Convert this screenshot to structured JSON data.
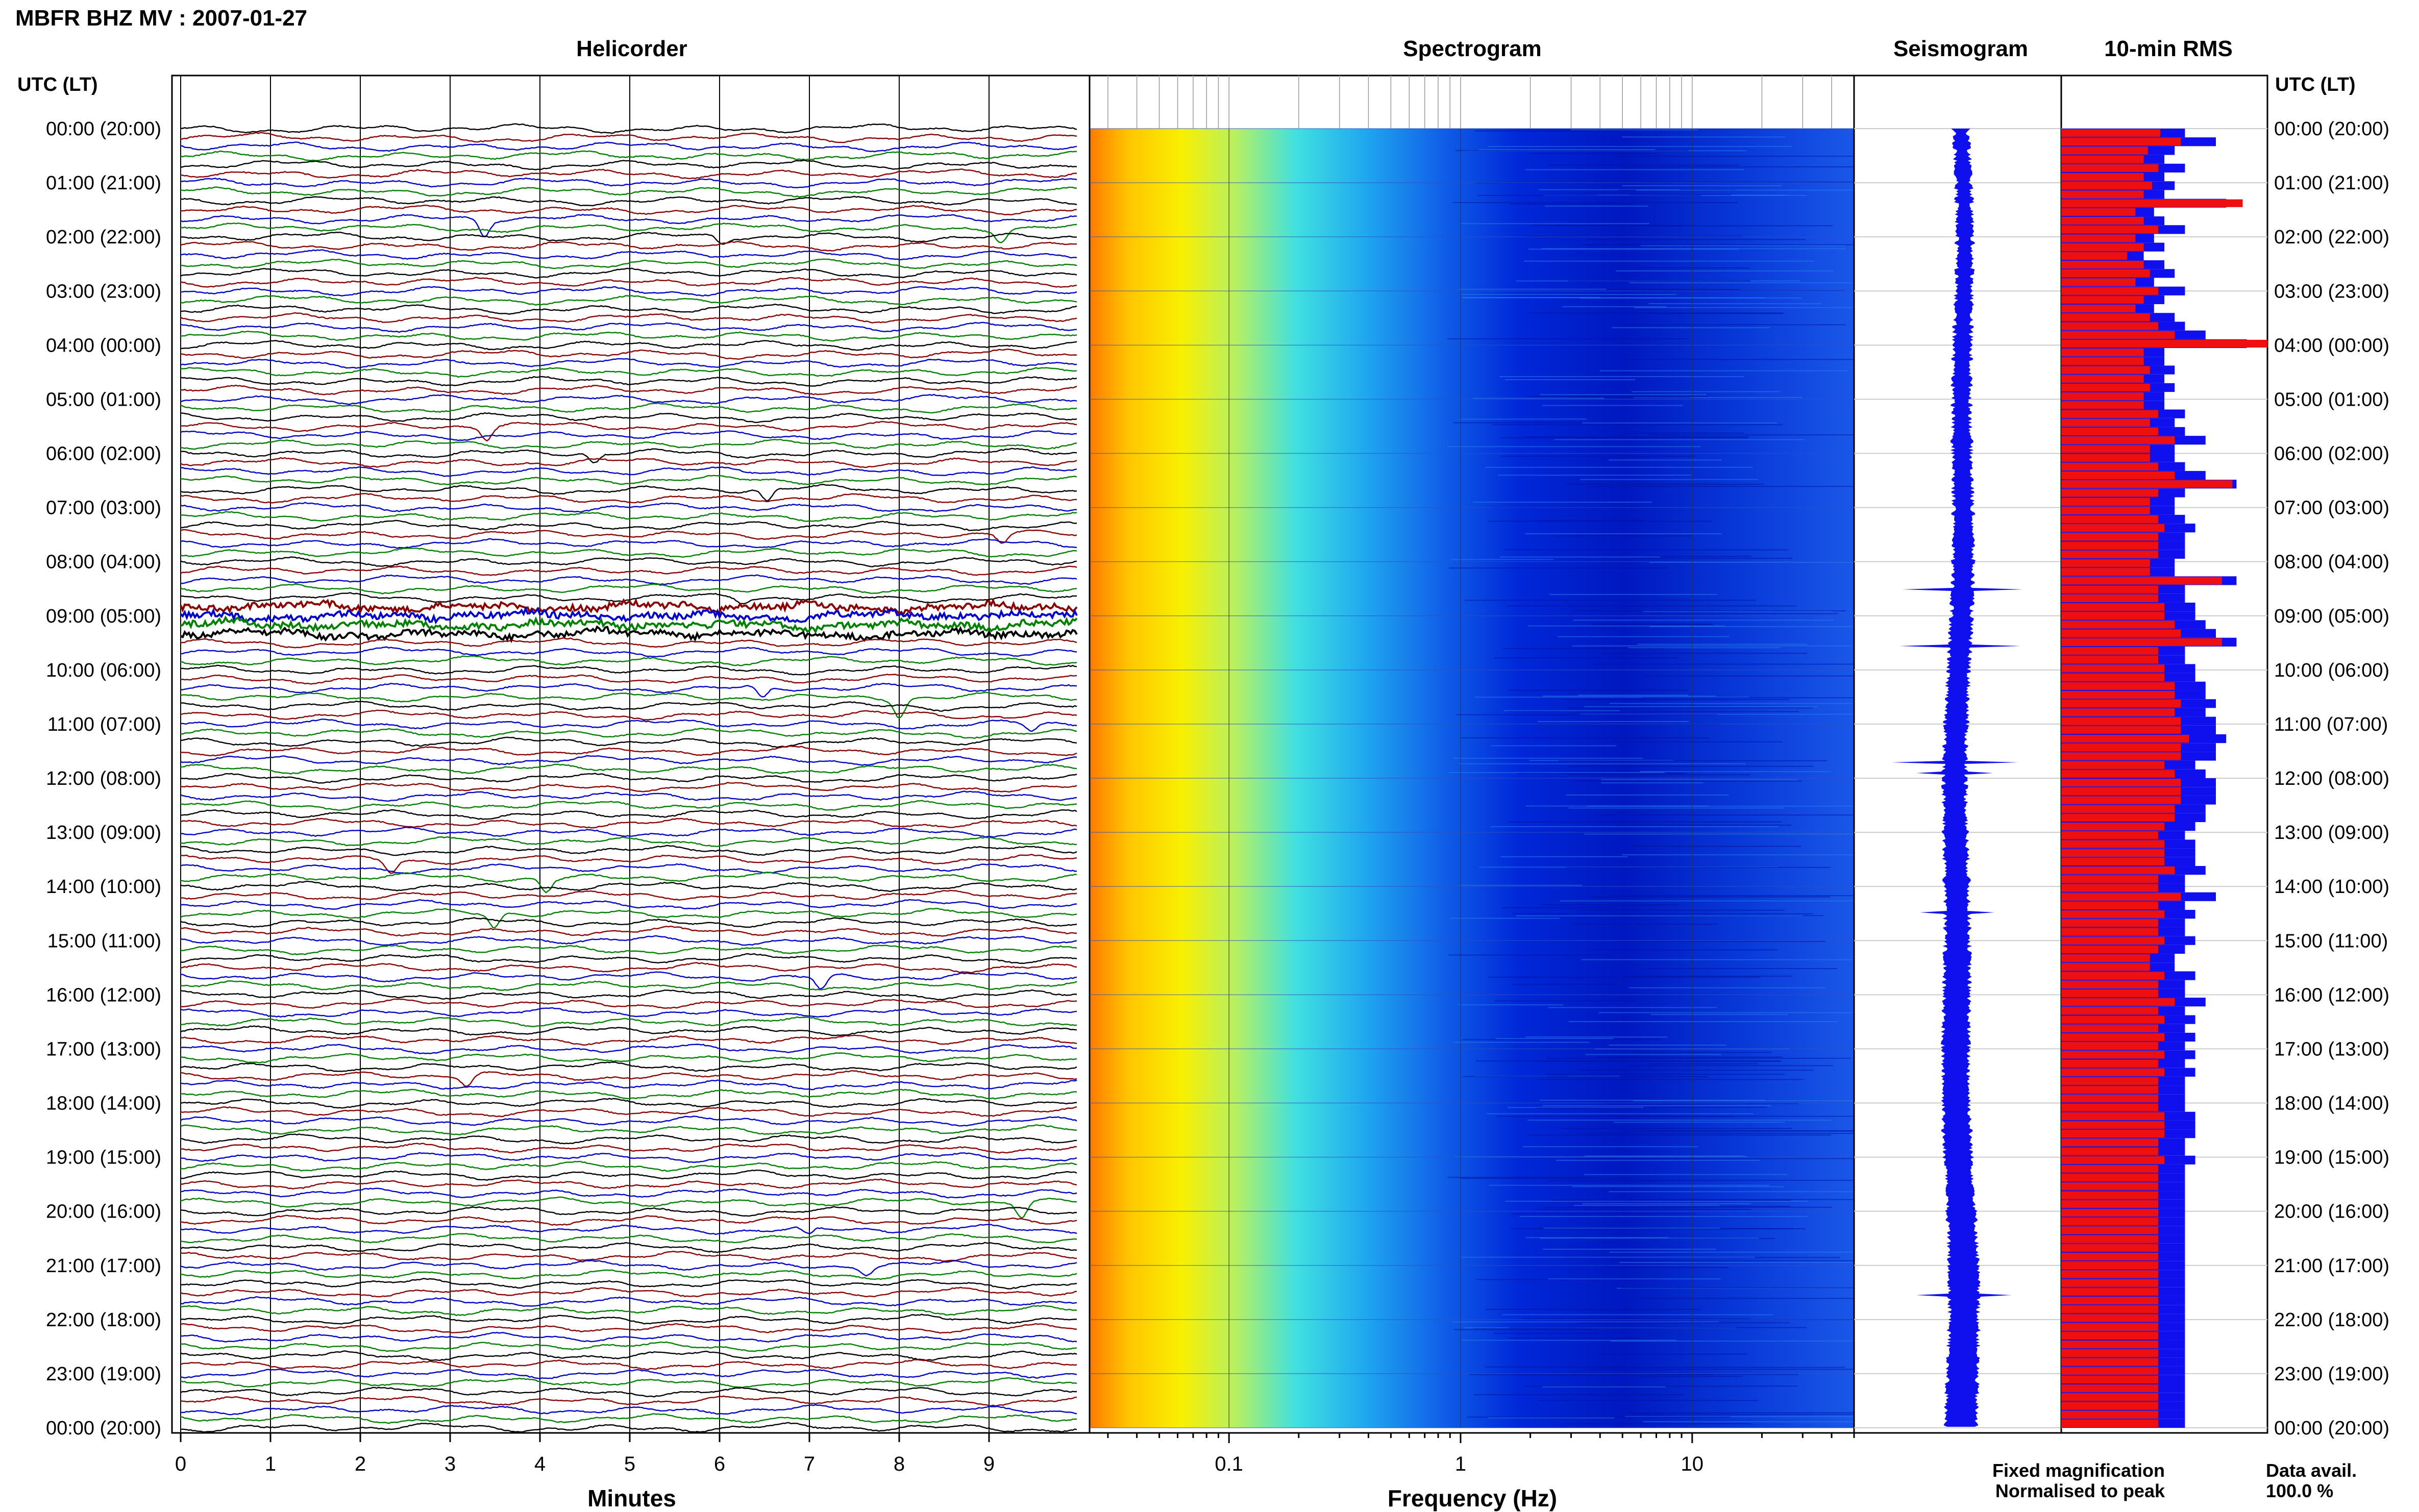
{
  "title": "MBFR BHZ MV : 2007-01-27",
  "panels": {
    "helicorder": "Helicorder",
    "spectrogram": "Spectrogram",
    "seismogram": "Seismogram",
    "rms": "10-min RMS"
  },
  "time_axis_label": "UTC (LT)",
  "time_labels": [
    "00:00 (20:00)",
    "01:00 (21:00)",
    "02:00 (22:00)",
    "03:00 (23:00)",
    "04:00 (00:00)",
    "05:00 (01:00)",
    "06:00 (02:00)",
    "07:00 (03:00)",
    "08:00 (04:00)",
    "09:00 (05:00)",
    "10:00 (06:00)",
    "11:00 (07:00)",
    "12:00 (08:00)",
    "13:00 (09:00)",
    "14:00 (10:00)",
    "15:00 (11:00)",
    "16:00 (12:00)",
    "17:00 (13:00)",
    "18:00 (14:00)",
    "19:00 (15:00)",
    "20:00 (16:00)",
    "21:00 (17:00)",
    "22:00 (18:00)",
    "23:00 (19:00)",
    "00:00 (20:00)"
  ],
  "helicorder_axis": {
    "label": "Minutes",
    "ticks": [
      "0",
      "1",
      "2",
      "3",
      "4",
      "5",
      "6",
      "7",
      "8",
      "9"
    ],
    "trace_colors": [
      "#000000",
      "#8b0000",
      "#0000cc",
      "#008000"
    ]
  },
  "spectrogram_axis": {
    "label": "Frequency (Hz)",
    "ticks": [
      "0.1",
      "1",
      "10"
    ],
    "scale": "log",
    "range": [
      0.025,
      50
    ]
  },
  "legend": {
    "fixed": "Fixed magnification",
    "fixed_color": "#1010ee",
    "normalised": "Normalised to peak",
    "normalised_color": "#ee1010"
  },
  "data_availability": {
    "label": "Data avail.",
    "value": "100.0 %"
  },
  "chart_data": {
    "type": "bar",
    "title": "MBFR BHZ MV : 2007-01-27",
    "subtitle": "10-min RMS",
    "x_unit": "UTC hour",
    "series": [
      {
        "name": "Fixed magnification",
        "color": "#1010ee",
        "values": [
          0.6,
          0.75,
          0.55,
          0.5,
          0.6,
          0.5,
          0.55,
          0.5,
          0.8,
          0.45,
          0.5,
          0.6,
          0.45,
          0.5,
          0.4,
          0.5,
          0.55,
          0.45,
          0.6,
          0.5,
          0.45,
          0.55,
          0.6,
          0.7,
          0.9,
          0.5,
          0.5,
          0.55,
          0.5,
          0.55,
          0.5,
          0.5,
          0.6,
          0.55,
          0.6,
          0.7,
          0.55,
          0.55,
          0.6,
          0.7,
          0.85,
          0.6,
          0.55,
          0.55,
          0.6,
          0.65,
          0.6,
          0.6,
          0.6,
          0.55,
          0.55,
          0.85,
          0.6,
          0.6,
          0.65,
          0.65,
          0.7,
          0.75,
          0.85,
          0.6,
          0.6,
          0.65,
          0.65,
          0.7,
          0.7,
          0.75,
          0.7,
          0.75,
          0.75,
          0.8,
          0.75,
          0.75,
          0.65,
          0.7,
          0.75,
          0.75,
          0.75,
          0.7,
          0.7,
          0.65,
          0.6,
          0.65,
          0.65,
          0.65,
          0.7,
          0.6,
          0.6,
          0.75,
          0.6,
          0.65,
          0.6,
          0.6,
          0.65,
          0.6,
          0.55,
          0.55,
          0.65,
          0.6,
          0.6,
          0.7,
          0.6,
          0.65,
          0.6,
          0.65,
          0.6,
          0.65,
          0.6,
          0.65,
          0.6,
          0.6,
          0.6,
          0.6,
          0.65,
          0.65,
          0.65,
          0.6,
          0.6,
          0.65,
          0.6,
          0.6,
          0.6,
          0.6,
          0.6,
          0.6,
          0.6,
          0.6,
          0.6,
          0.6,
          0.6,
          0.6,
          0.6,
          0.6,
          0.6,
          0.6,
          0.6,
          0.6,
          0.6,
          0.6,
          0.6,
          0.6,
          0.6,
          0.6,
          0.6,
          0.6,
          0.6,
          0.6,
          0.6,
          0.6
        ]
      },
      {
        "name": "Normalised to peak",
        "color": "#ee1010",
        "values": [
          0.48,
          0.58,
          0.42,
          0.4,
          0.47,
          0.4,
          0.44,
          0.4,
          0.88,
          0.36,
          0.4,
          0.47,
          0.36,
          0.4,
          0.32,
          0.4,
          0.43,
          0.36,
          0.47,
          0.4,
          0.36,
          0.43,
          0.47,
          0.55,
          1.0,
          0.4,
          0.4,
          0.43,
          0.4,
          0.43,
          0.4,
          0.4,
          0.47,
          0.43,
          0.47,
          0.55,
          0.43,
          0.43,
          0.47,
          0.55,
          0.83,
          0.47,
          0.43,
          0.43,
          0.47,
          0.5,
          0.47,
          0.47,
          0.47,
          0.43,
          0.43,
          0.78,
          0.47,
          0.47,
          0.5,
          0.5,
          0.55,
          0.58,
          0.78,
          0.47,
          0.47,
          0.5,
          0.5,
          0.55,
          0.55,
          0.58,
          0.55,
          0.58,
          0.58,
          0.62,
          0.58,
          0.58,
          0.5,
          0.55,
          0.58,
          0.58,
          0.58,
          0.55,
          0.55,
          0.5,
          0.47,
          0.5,
          0.5,
          0.5,
          0.55,
          0.47,
          0.47,
          0.58,
          0.47,
          0.5,
          0.47,
          0.47,
          0.5,
          0.47,
          0.43,
          0.43,
          0.5,
          0.47,
          0.47,
          0.55,
          0.47,
          0.5,
          0.47,
          0.5,
          0.47,
          0.5,
          0.47,
          0.5,
          0.47,
          0.47,
          0.47,
          0.47,
          0.5,
          0.5,
          0.5,
          0.47,
          0.47,
          0.5,
          0.47,
          0.47,
          0.47,
          0.47,
          0.47,
          0.47,
          0.47,
          0.47,
          0.47,
          0.47,
          0.47,
          0.47,
          0.47,
          0.47,
          0.47,
          0.47,
          0.47,
          0.47,
          0.47,
          0.47,
          0.47,
          0.47,
          0.47,
          0.47,
          0.47,
          0.47,
          0.47,
          0.47,
          0.47,
          0.47
        ]
      }
    ],
    "grid": true,
    "legend_position": "bottom-right"
  }
}
